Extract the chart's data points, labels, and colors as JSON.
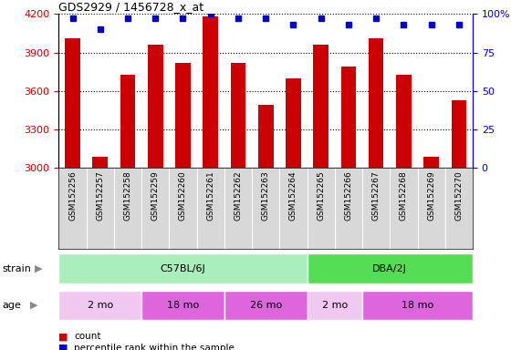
{
  "title": "GDS2929 / 1456728_x_at",
  "samples": [
    "GSM152256",
    "GSM152257",
    "GSM152258",
    "GSM152259",
    "GSM152260",
    "GSM152261",
    "GSM152262",
    "GSM152263",
    "GSM152264",
    "GSM152265",
    "GSM152266",
    "GSM152267",
    "GSM152268",
    "GSM152269",
    "GSM152270"
  ],
  "counts": [
    4010,
    3090,
    3730,
    3960,
    3820,
    4180,
    3820,
    3490,
    3700,
    3960,
    3790,
    4010,
    3730,
    3090,
    3530
  ],
  "percentile_ranks": [
    97,
    90,
    97,
    97,
    97,
    100,
    97,
    97,
    93,
    97,
    93,
    97,
    93,
    93,
    93
  ],
  "ylim_left": [
    3000,
    4200
  ],
  "ylim_right": [
    0,
    100
  ],
  "yticks_left": [
    3000,
    3300,
    3600,
    3900,
    4200
  ],
  "yticks_right": [
    0,
    25,
    50,
    75,
    100
  ],
  "bar_color": "#cc0000",
  "dot_color": "#0000cc",
  "plot_bg_color": "#ffffff",
  "label_area_bg": "#d8d8d8",
  "strain_groups": [
    {
      "label": "C57BL/6J",
      "start": 0,
      "end": 8,
      "color": "#aaeebb"
    },
    {
      "label": "DBA/2J",
      "start": 9,
      "end": 14,
      "color": "#55dd55"
    }
  ],
  "age_groups": [
    {
      "label": "2 mo",
      "start": 0,
      "end": 2,
      "color": "#f0c8f0"
    },
    {
      "label": "18 mo",
      "start": 3,
      "end": 5,
      "color": "#dd66dd"
    },
    {
      "label": "26 mo",
      "start": 6,
      "end": 8,
      "color": "#dd66dd"
    },
    {
      "label": "2 mo",
      "start": 9,
      "end": 10,
      "color": "#f0c8f0"
    },
    {
      "label": "18 mo",
      "start": 11,
      "end": 14,
      "color": "#dd66dd"
    }
  ],
  "left_axis_color": "#cc0000",
  "right_axis_color": "#0000cc",
  "legend_count_color": "#cc0000",
  "legend_dot_color": "#0000cc",
  "fig_width": 5.6,
  "fig_height": 3.84,
  "dpi": 100
}
